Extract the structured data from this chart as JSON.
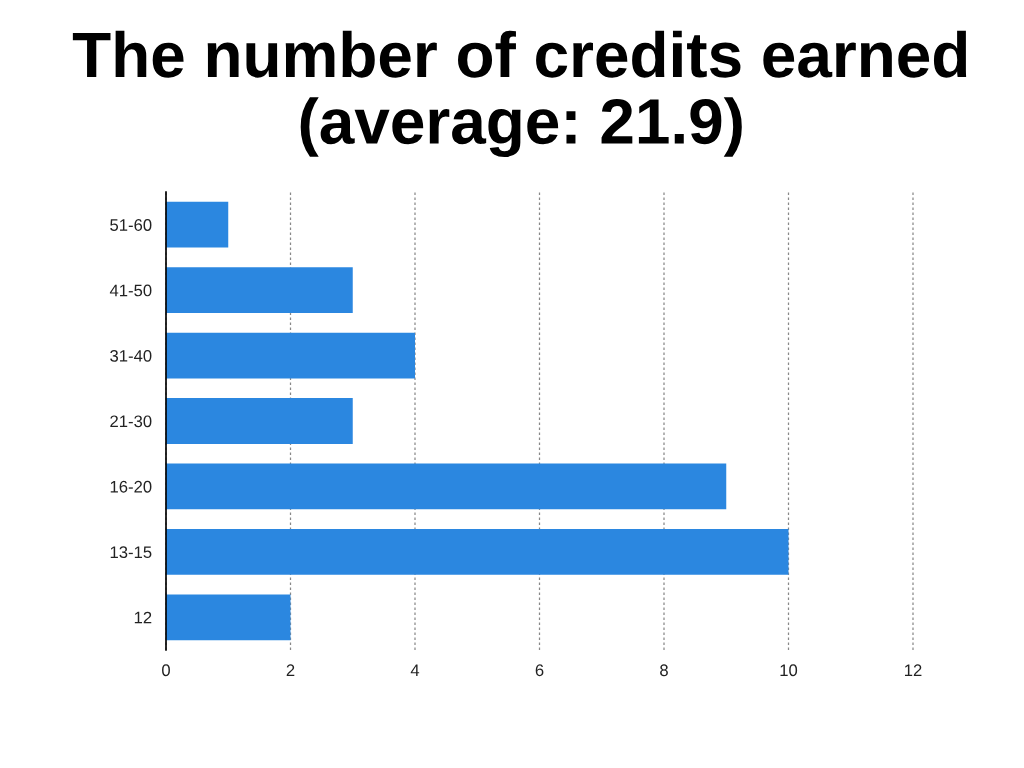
{
  "chart_data": {
    "type": "bar",
    "orientation": "horizontal",
    "title": "The number of credits earned\n(average: 21.9)",
    "categories": [
      "51-60",
      "41-50",
      "31-40",
      "21-30",
      "16-20",
      "13-15",
      "12"
    ],
    "values": [
      1,
      3,
      4,
      3,
      9,
      10,
      2
    ],
    "color": "#2b87e0",
    "xlim": [
      0,
      12
    ],
    "xticks": [
      0,
      2,
      4,
      6,
      8,
      10,
      12
    ],
    "grid": "x",
    "legend": false
  }
}
